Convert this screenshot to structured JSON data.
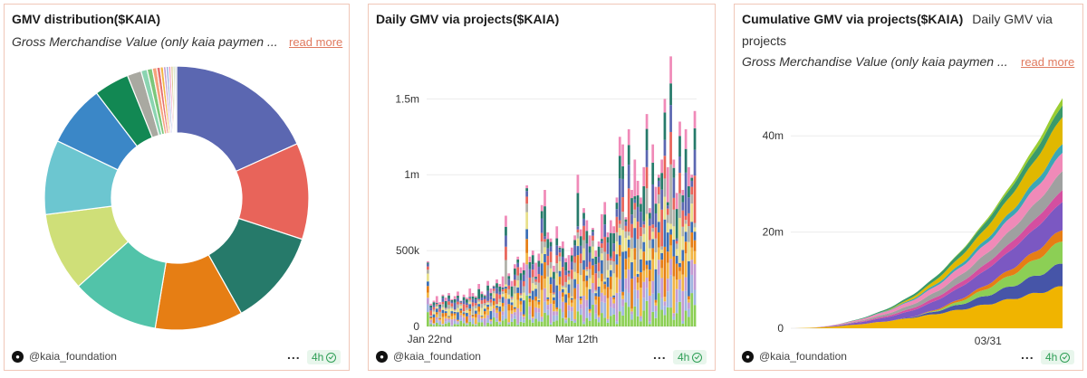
{
  "cards": [
    {
      "title": "GMV distribution($KAIA)",
      "description": "Gross Merchandise Value (only kaia paymen  ...",
      "read_more": "read more",
      "author": "@kaia_foundation",
      "more": "...",
      "age": "4h"
    },
    {
      "title": "Daily GMV via projects($KAIA)",
      "author": "@kaia_foundation",
      "more": "...",
      "age": "4h"
    },
    {
      "title": "Cumulative GMV via projects($KAIA)",
      "subtitle_part1": "Daily GMV via",
      "subtitle_part2": "projects",
      "description": "Gross Merchandise Value (only kaia paymen  ...",
      "read_more": "read more",
      "author": "@kaia_foundation",
      "more": "...",
      "age": "4h"
    }
  ],
  "chart_data": [
    {
      "type": "pie",
      "title": "GMV distribution($KAIA)",
      "donut": true,
      "slices": [
        {
          "value": 17,
          "color": "#5b67b1"
        },
        {
          "value": 11,
          "color": "#e8645a"
        },
        {
          "value": 11,
          "color": "#267a6a"
        },
        {
          "value": 10,
          "color": "#e67e14"
        },
        {
          "value": 10,
          "color": "#52c3a9"
        },
        {
          "value": 9,
          "color": "#cfdf78"
        },
        {
          "value": 8.5,
          "color": "#6cc6d0"
        },
        {
          "value": 7,
          "color": "#3b87c7"
        },
        {
          "value": 4,
          "color": "#128853"
        },
        {
          "value": 1.6,
          "color": "#a9a9a1"
        },
        {
          "value": 0.7,
          "color": "#8bd4b1"
        },
        {
          "value": 0.6,
          "color": "#7cc77a"
        },
        {
          "value": 0.5,
          "color": "#f6a27c"
        },
        {
          "value": 0.4,
          "color": "#e66f6f"
        },
        {
          "value": 0.35,
          "color": "#f2b544"
        },
        {
          "value": 0.3,
          "color": "#c39bd3"
        },
        {
          "value": 0.3,
          "color": "#9fb6e0"
        },
        {
          "value": 0.25,
          "color": "#f08ab8"
        },
        {
          "value": 0.25,
          "color": "#d9c48c"
        },
        {
          "value": 0.2,
          "color": "#b9d7a0"
        },
        {
          "value": 0.2,
          "color": "#cccccc"
        }
      ]
    },
    {
      "type": "bar",
      "stacked": true,
      "title": "Daily GMV via projects($KAIA)",
      "xticks": [
        {
          "label": "Jan 22nd",
          "index": 1
        },
        {
          "label": "Mar 12th",
          "index": 50
        }
      ],
      "yticks": [
        {
          "label": "0",
          "value": 0
        },
        {
          "label": "500k",
          "value": 500000
        },
        {
          "label": "1m",
          "value": 1000000
        },
        {
          "label": "1.5m",
          "value": 1500000
        }
      ],
      "ylim": [
        0,
        1800000
      ],
      "colors": [
        "#8ccf55",
        "#9fb6e0",
        "#c39bd3",
        "#f2b544",
        "#e67e14",
        "#3b6fb6",
        "#e8e08a",
        "#b0b0a8",
        "#e8645a",
        "#5b67b1",
        "#267a6a",
        "#f08ab8"
      ],
      "totals": [
        430000,
        150000,
        170000,
        200000,
        160000,
        210000,
        190000,
        220000,
        180000,
        200000,
        230000,
        170000,
        210000,
        190000,
        250000,
        220000,
        200000,
        280000,
        230000,
        210000,
        300000,
        250000,
        270000,
        310000,
        280000,
        330000,
        730000,
        350000,
        300000,
        410000,
        460000,
        390000,
        420000,
        930000,
        460000,
        500000,
        420000,
        480000,
        800000,
        900000,
        620000,
        580000,
        400000,
        660000,
        530000,
        560000,
        450000,
        470000,
        520000,
        600000,
        1000000,
        640000,
        780000,
        700000,
        600000,
        650000,
        500000,
        560000,
        740000,
        820000,
        620000,
        700000,
        660000,
        850000,
        1250000,
        1200000,
        720000,
        1300000,
        900000,
        1100000,
        960000,
        850000,
        1050000,
        1400000,
        780000,
        1200000,
        920000,
        1000000,
        1100000,
        1500000,
        1050000,
        1780000,
        1100000,
        880000,
        1350000,
        900000,
        1300000,
        1050000,
        1000000,
        1420000
      ]
    },
    {
      "type": "area",
      "stacked": true,
      "title": "Cumulative GMV via projects($KAIA)",
      "xticks": [
        {
          "label": "03/31",
          "index": 53
        }
      ],
      "yticks": [
        {
          "label": "0",
          "value": 0
        },
        {
          "label": "20m",
          "value": 20000000
        },
        {
          "label": "40m",
          "value": 40000000
        }
      ],
      "ylim": [
        0,
        50000000
      ],
      "points": 74,
      "final_total": 48000000,
      "series": [
        {
          "color": "#f0b400",
          "share": 0.18,
          "delay": 0.0
        },
        {
          "color": "#4655a8",
          "share": 0.1,
          "delay": 0.35
        },
        {
          "color": "#8ccf55",
          "share": 0.1,
          "delay": 0.45
        },
        {
          "color": "#e67e14",
          "share": 0.05,
          "delay": 0.4
        },
        {
          "color": "#7b58c2",
          "share": 0.12,
          "delay": 0.05
        },
        {
          "color": "#d44fa0",
          "share": 0.05,
          "delay": 0.1
        },
        {
          "color": "#9fa0a0",
          "share": 0.08,
          "delay": 0.1
        },
        {
          "color": "#f08ab8",
          "share": 0.08,
          "delay": 0.05
        },
        {
          "color": "#3ba7b5",
          "share": 0.04,
          "delay": 0.2
        },
        {
          "color": "#e0b800",
          "share": 0.12,
          "delay": 0.3
        },
        {
          "color": "#3a9a6a",
          "share": 0.05,
          "delay": 0.1
        },
        {
          "color": "#9acd32",
          "share": 0.03,
          "delay": 0.5
        }
      ]
    }
  ]
}
